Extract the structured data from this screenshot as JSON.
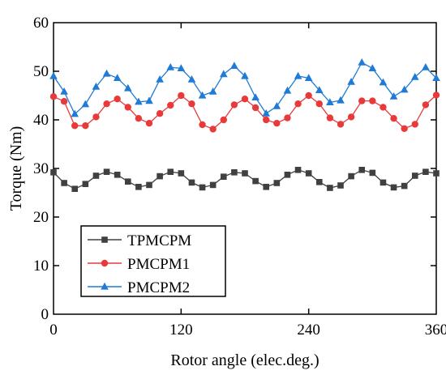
{
  "chart_data": {
    "type": "line",
    "xlabel": "Rotor angle (elec.deg.)",
    "ylabel": "Torque (Nm)",
    "xlim": [
      0,
      360
    ],
    "ylim": [
      0,
      60
    ],
    "xticks": [
      "0",
      "120",
      "240",
      "360"
    ],
    "yticks": [
      "0",
      "10",
      "20",
      "30",
      "40",
      "50",
      "60"
    ],
    "grid": false,
    "legend_position": "bottom-left",
    "x": [
      0,
      10,
      20,
      30,
      40,
      50,
      60,
      70,
      80,
      90,
      100,
      110,
      120,
      130,
      140,
      150,
      160,
      170,
      180,
      190,
      200,
      210,
      220,
      230,
      240,
      250,
      260,
      270,
      280,
      290,
      300,
      310,
      320,
      330,
      340,
      350,
      360
    ],
    "series": [
      {
        "name": "TPMCPM",
        "color": "#404040",
        "marker": "square",
        "values": [
          29.2,
          27.0,
          25.8,
          26.8,
          28.5,
          29.3,
          28.7,
          27.3,
          26.2,
          26.6,
          28.4,
          29.3,
          29.0,
          27.1,
          26.1,
          26.6,
          28.3,
          29.2,
          29.0,
          27.4,
          26.2,
          27.0,
          28.7,
          29.7,
          29.0,
          27.2,
          26.0,
          26.5,
          28.4,
          29.7,
          29.1,
          27.1,
          26.1,
          26.4,
          28.5,
          29.3,
          29.0
        ]
      },
      {
        "name": "PMCPM1",
        "color": "#e83a3a",
        "marker": "circle",
        "values": [
          44.8,
          43.8,
          38.8,
          38.8,
          40.6,
          43.3,
          44.3,
          42.6,
          40.3,
          39.3,
          41.3,
          43.0,
          45.0,
          43.3,
          39.0,
          38.1,
          40.0,
          43.1,
          44.3,
          42.5,
          40.0,
          39.3,
          40.4,
          43.3,
          45.0,
          43.3,
          40.4,
          39.1,
          40.6,
          43.9,
          43.9,
          42.6,
          40.3,
          38.2,
          39.1,
          43.1,
          45.1
        ]
      },
      {
        "name": "PMCPM2",
        "color": "#1f7bd6",
        "marker": "triangle",
        "values": [
          49.0,
          45.8,
          41.2,
          43.2,
          46.8,
          49.5,
          48.6,
          46.5,
          43.7,
          43.9,
          48.3,
          50.8,
          50.6,
          48.3,
          45.0,
          45.8,
          49.4,
          51.1,
          49.0,
          44.6,
          41.3,
          42.8,
          46.0,
          49.0,
          48.6,
          46.1,
          43.6,
          44.0,
          47.8,
          51.8,
          50.6,
          47.7,
          44.8,
          46.2,
          48.8,
          50.8,
          48.6
        ]
      }
    ]
  }
}
